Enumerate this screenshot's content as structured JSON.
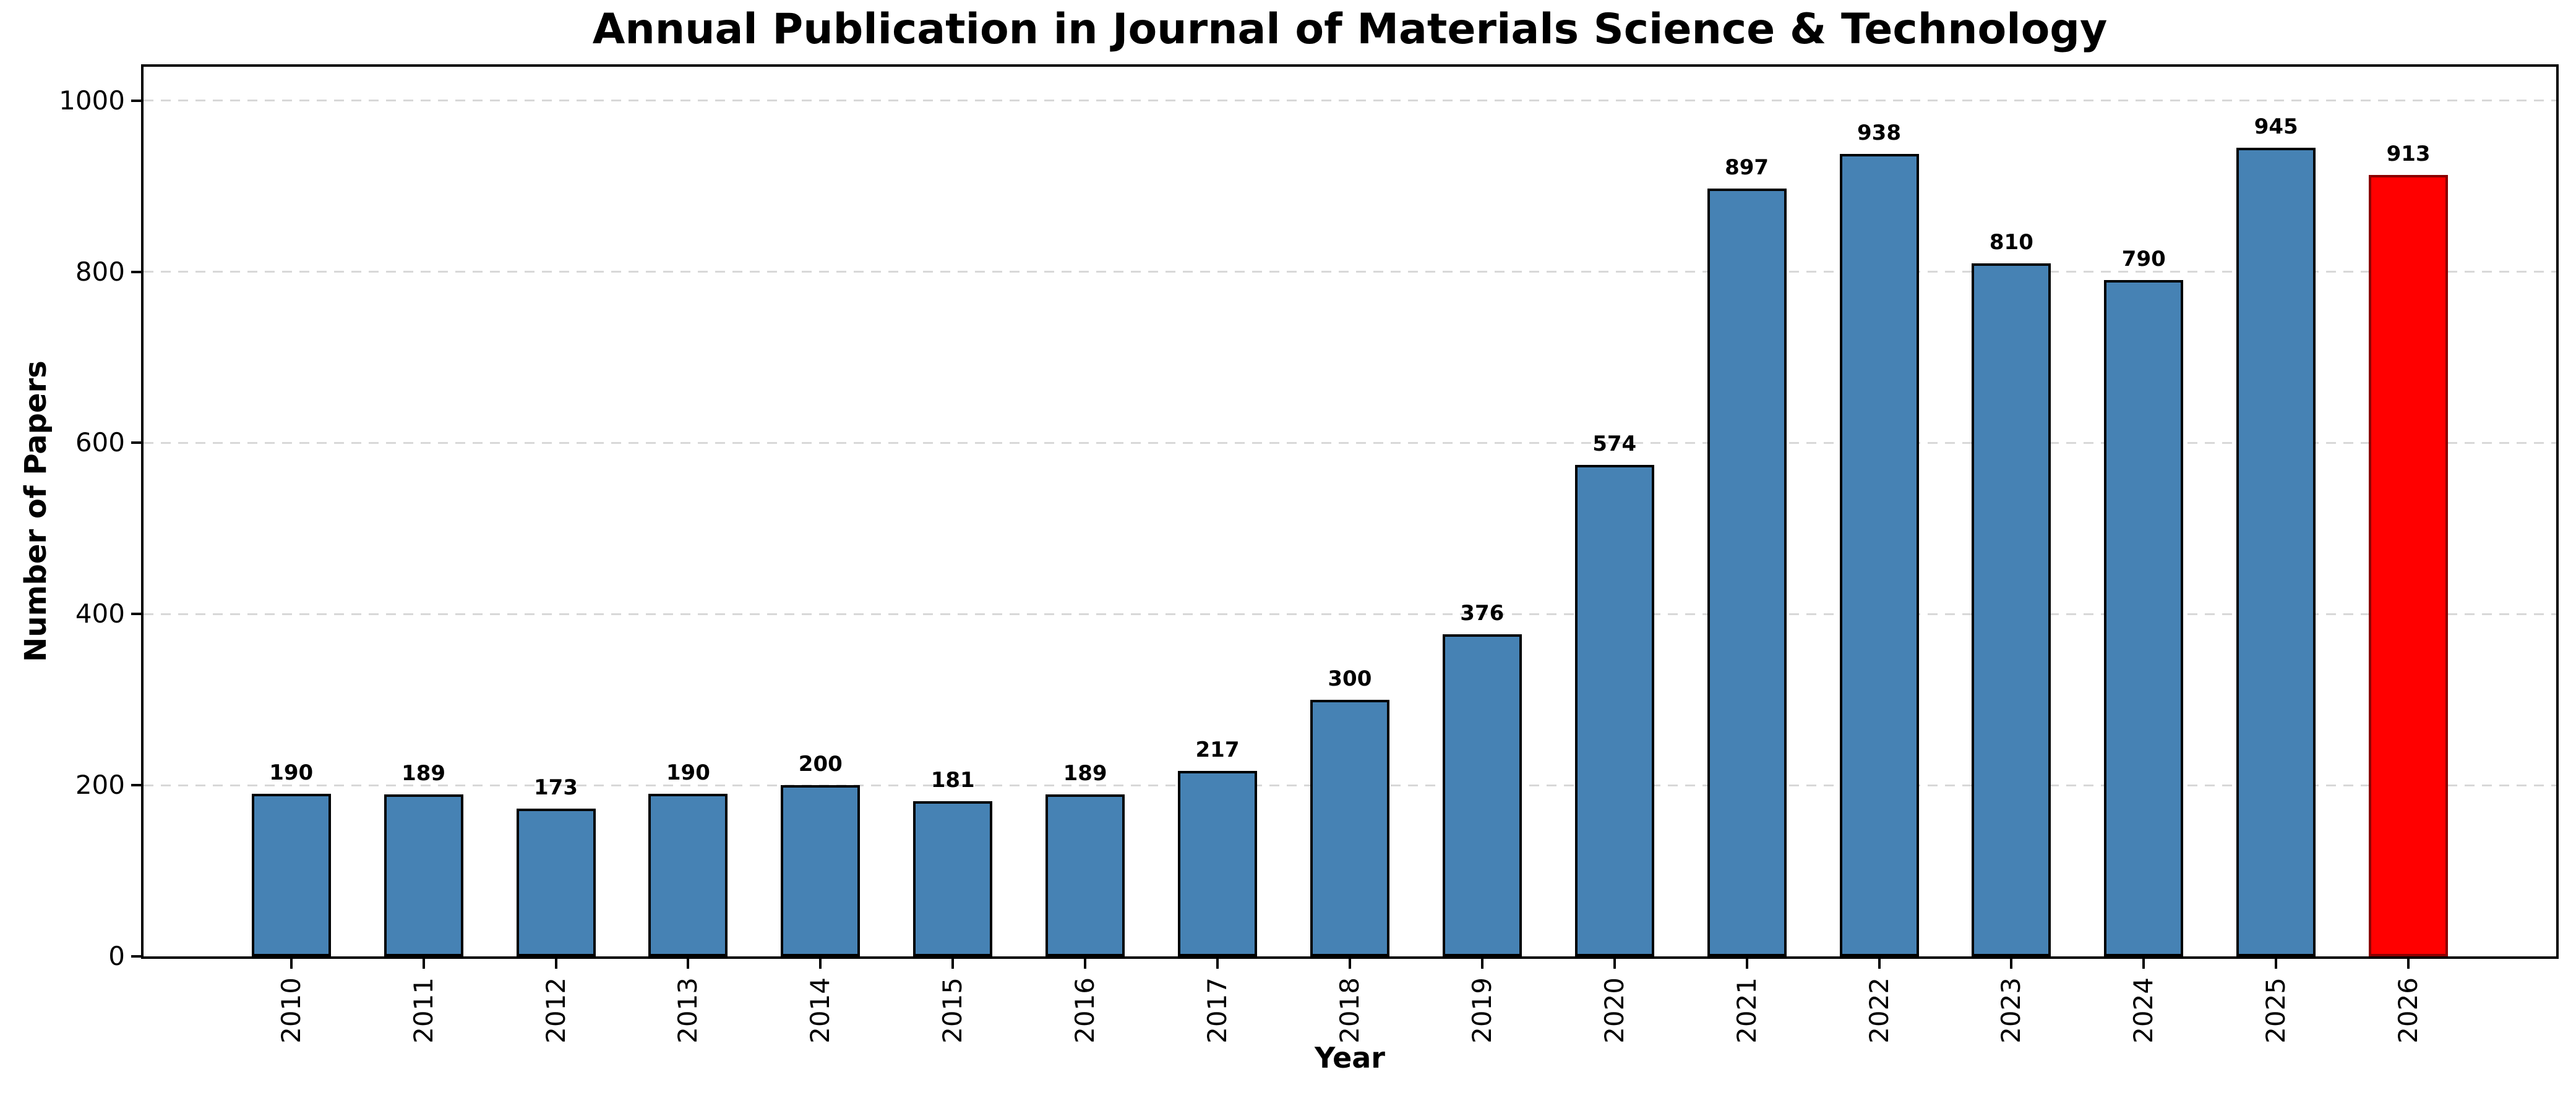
{
  "chart_data": {
    "type": "bar",
    "title": "Annual Publication in Journal of Materials Science & Technology",
    "xlabel": "Year",
    "ylabel": "Number of Papers",
    "categories": [
      "2010",
      "2011",
      "2012",
      "2013",
      "2014",
      "2015",
      "2016",
      "2017",
      "2018",
      "2019",
      "2020",
      "2021",
      "2022",
      "2023",
      "2024",
      "2025",
      "2026"
    ],
    "values": [
      190,
      189,
      173,
      190,
      200,
      181,
      189,
      217,
      300,
      376,
      574,
      897,
      938,
      810,
      790,
      945,
      913
    ],
    "value_labels_shown": true,
    "bar_color": "#4682B4",
    "bar_edge_color": "#000000",
    "highlight": {
      "index": 16,
      "category": "2026",
      "value": 913,
      "color": "#FF0000",
      "edge_color": "#8B0000"
    },
    "yticks": [
      0,
      200,
      400,
      600,
      800,
      1000
    ],
    "ylim": [
      0,
      1039.5
    ],
    "grid": "horizontal-dashed",
    "gridline_color": "#d8d8d8",
    "legend": "none",
    "x_tick_label_rotation_deg": 90
  }
}
